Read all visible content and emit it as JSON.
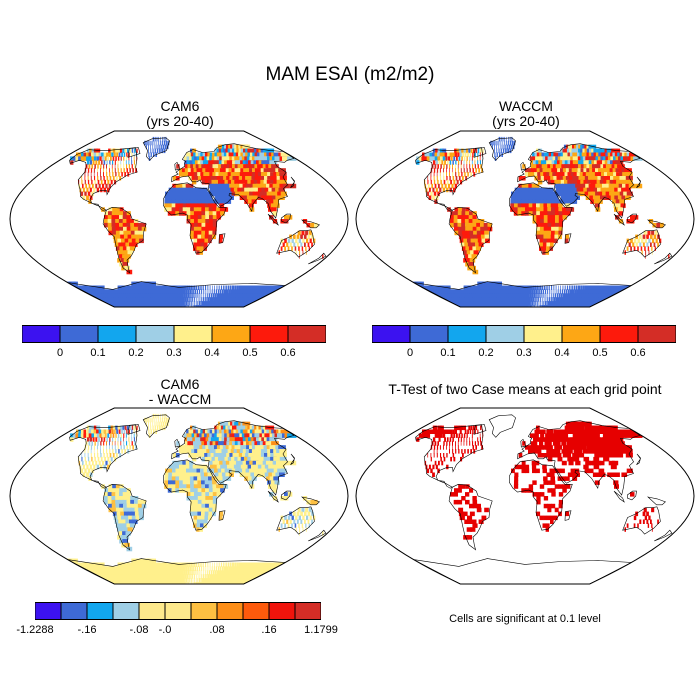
{
  "title": "MAM ESAI (m2/m2)",
  "panels": [
    {
      "title_line1": "CAM6",
      "title_line2": "(yrs 20-40)"
    },
    {
      "title_line1": "WACCM",
      "title_line2": "(yrs 20-40)"
    },
    {
      "title_line1": "CAM6",
      "title_line2": "- WACCM"
    },
    {
      "title_line1": "T-Test of two Case means at each grid point",
      "title_line2": ""
    }
  ],
  "colorbar_abs": {
    "colors": [
      "#3c12f0",
      "#3e6ad6",
      "#12a6ee",
      "#9fcfe6",
      "#fff08c",
      "#fda715",
      "#fd1a0c",
      "#d42d26"
    ],
    "labels": [
      "0",
      "0.1",
      "0.2",
      "0.3",
      "0.4",
      "0.5",
      "0.6"
    ]
  },
  "colorbar_diff": {
    "colors": [
      "#3c12f0",
      "#3e6ad6",
      "#12a6ee",
      "#9fcfe6",
      "#fde98c",
      "#fde98c",
      "#fdc042",
      "#fd8e17",
      "#fd5a0c",
      "#f0140c",
      "#d42d26"
    ],
    "labels": [
      "-1.2288",
      "-.16",
      "-.08",
      "-.0",
      ".08",
      ".16",
      "1.1799"
    ]
  },
  "significance_note": "Cells are significant at 0.1 level",
  "map_colors": {
    "ocean": "#ffffff",
    "ice": "#3e6ad6",
    "ice_diff": "#fff08c",
    "significant": "#e60000"
  }
}
